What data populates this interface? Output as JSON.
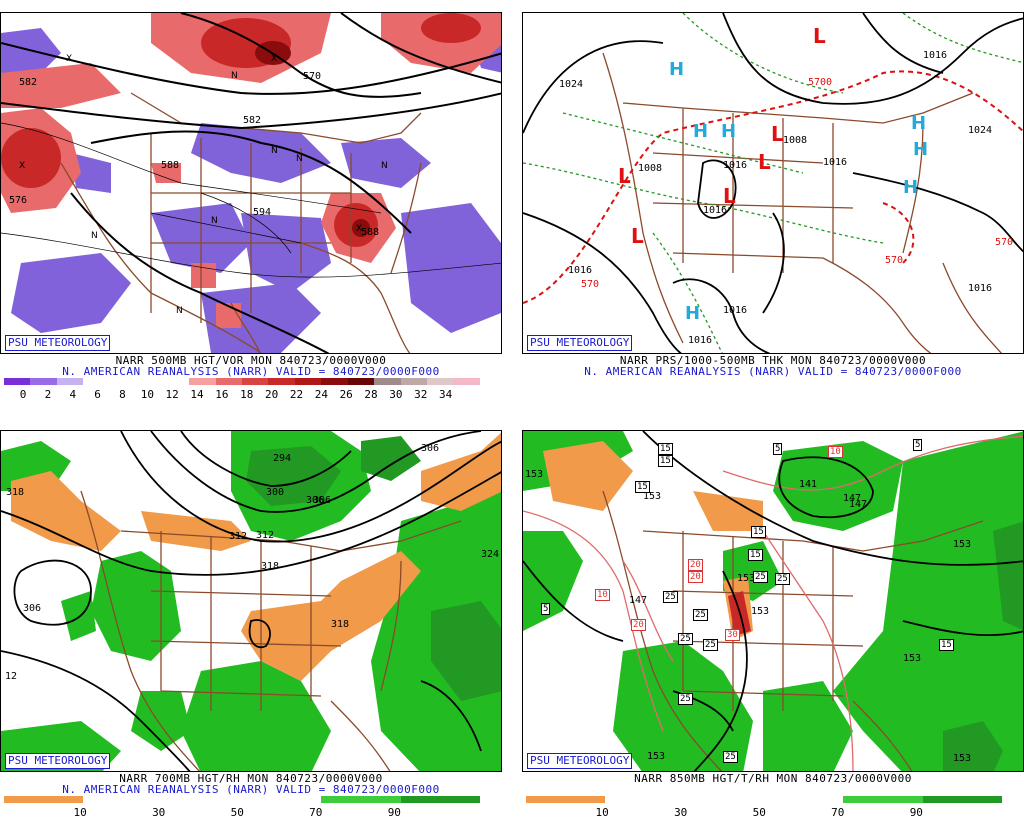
{
  "badge": "PSU METEOROLOGY",
  "colors": {
    "coast": "#8b4a2b",
    "height_contour": "#000000",
    "vort_red": "#c8282a",
    "vort_purple": "#7a5ad8",
    "rh_green": "#22bb22",
    "rh_orange": "#f09a4a",
    "thickness_red": "#dd1111",
    "thickness_green": "#229922",
    "high_marker": "#22aadd",
    "low_marker": "#dd1111"
  },
  "panels": {
    "tl": {
      "line1": "NARR 500MB HGT/VOR MON 840723/0000V000",
      "line2": "N. AMERICAN REANALYSIS (NARR) VALID = 840723/0000F000",
      "contour_labels": [
        "582",
        "570",
        "582",
        "576",
        "594",
        "588",
        "588"
      ],
      "colorbar_colors": [
        "#7a2fd6",
        "#9a6be6",
        "#c4b3f0",
        "#ffffff",
        "#ffffff",
        "#ffffff",
        "#ffffff",
        "#f4a0a0",
        "#e86a6a",
        "#d84444",
        "#c82828",
        "#b01818",
        "#8a0c0c",
        "#6a0505",
        "#a08a8a",
        "#c0a8a8",
        "#e0c8c8",
        "#f5b8c8"
      ],
      "ticks": [
        "0",
        "2",
        "4",
        "6",
        "8",
        "10",
        "12",
        "14",
        "16",
        "18",
        "20",
        "22",
        "24",
        "26",
        "28",
        "30",
        "32",
        "34"
      ]
    },
    "tr": {
      "line1": "NARR PRS/1000-500MB THK MON 840723/0000V000",
      "line2": "N. AMERICAN REANALYSIS (NARR) VALID = 840723/0000F000",
      "pressure_labels": [
        "1024",
        "1016",
        "1008",
        "1016",
        "1016",
        "1008",
        "1016",
        "1016",
        "1024",
        "1016",
        "1016",
        "1016"
      ],
      "thickness_labels": [
        "5700",
        "570",
        "570",
        "570"
      ],
      "highs": [
        "H",
        "H",
        "H",
        "H",
        "H",
        "H",
        "H"
      ],
      "lows": [
        "L",
        "L",
        "L",
        "L",
        "L",
        "L"
      ]
    },
    "bl": {
      "line1": "NARR 700MB HGT/RH MON 840723/0000V000",
      "line2": "N. AMERICAN REANALYSIS (NARR) VALID = 840723/0000F000",
      "contour_labels": [
        "318",
        "306",
        "312",
        "294",
        "300",
        "306",
        "312",
        "318",
        "318",
        "324",
        "306",
        "306",
        "12"
      ],
      "colorbar_colors": [
        "#f09a4a",
        "#ffffff",
        "#ffffff",
        "#ffffff",
        "#3ccc3c",
        "#229922"
      ],
      "ticks": [
        "10",
        "30",
        "50",
        "70",
        "90"
      ]
    },
    "br": {
      "line1": "NARR 850MB HGT/T/RH MON 840723/0000V000",
      "contour_labels": [
        "153",
        "147",
        "141",
        "147",
        "153",
        "153",
        "153",
        "153",
        "153",
        "147",
        "153",
        "153"
      ],
      "temp_boxes": [
        "15",
        "15",
        "5",
        "5",
        "15",
        "15",
        "10",
        "15",
        "20",
        "20",
        "10",
        "20",
        "25",
        "25",
        "25",
        "25",
        "30",
        "25",
        "25",
        "15",
        "25",
        "5",
        "25"
      ],
      "colorbar_colors": [
        "#f09a4a",
        "#ffffff",
        "#ffffff",
        "#ffffff",
        "#3ccc3c",
        "#229922"
      ],
      "ticks": [
        "10",
        "30",
        "50",
        "70",
        "90"
      ]
    }
  }
}
